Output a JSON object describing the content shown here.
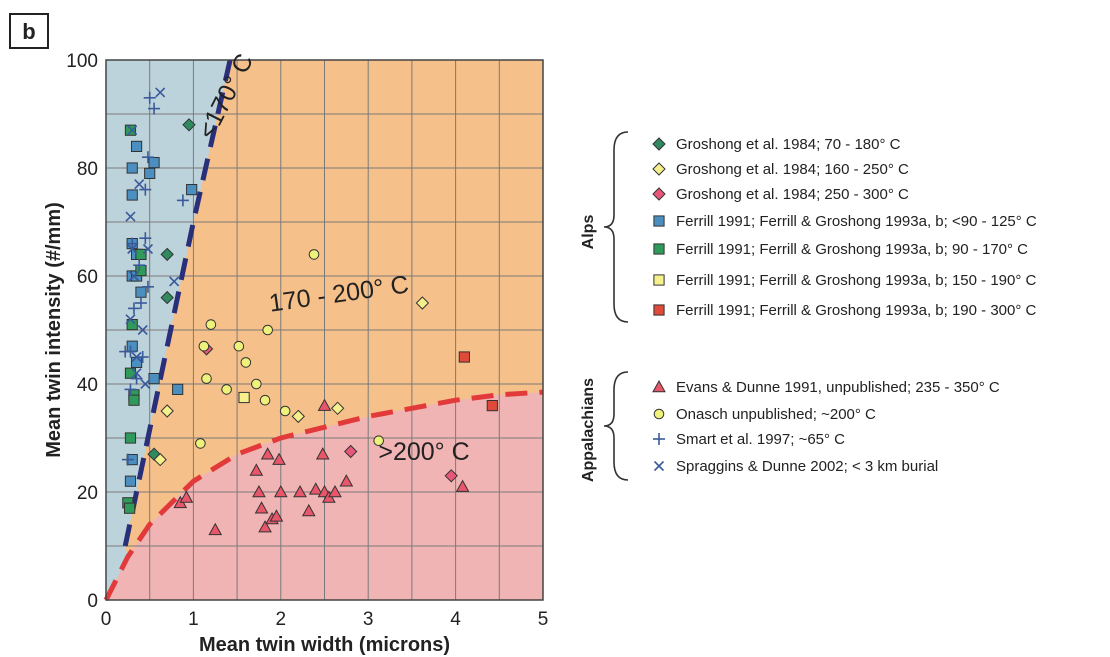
{
  "panel_label": "b",
  "chart_data": {
    "type": "scatter",
    "xlabel": "Mean twin width (microns)",
    "ylabel": "Mean twin intensity (#/mm)",
    "xlim": [
      0,
      5
    ],
    "ylim": [
      0,
      100
    ],
    "x_ticks": [
      "0",
      "1",
      "2",
      "3",
      "4",
      "5"
    ],
    "y_ticks": [
      "0",
      "20",
      "40",
      "60",
      "80",
      "100"
    ],
    "grid": true,
    "region_labels": [
      "<170° C",
      "170 - 200° C",
      ">200° C"
    ],
    "regions": [
      {
        "label": "<170° C",
        "color": "#bdd3dc"
      },
      {
        "label": "170 - 200° C",
        "color": "#f6c08a"
      },
      {
        "label": ">200° C",
        "color": "#f0b4b4"
      }
    ],
    "boundaries": [
      {
        "style": "dashed",
        "color": "#2a2f7a",
        "points": [
          [
            0.22,
            10
          ],
          [
            1.0,
            70
          ],
          [
            1.42,
            100
          ]
        ]
      },
      {
        "style": "dashed",
        "color": "#e23a3a",
        "points": [
          [
            0,
            0
          ],
          [
            0.25,
            8
          ],
          [
            0.5,
            14
          ],
          [
            1,
            22
          ],
          [
            1.5,
            27
          ],
          [
            2,
            30
          ],
          [
            2.5,
            32
          ],
          [
            3,
            34
          ],
          [
            3.5,
            35.5
          ],
          [
            4,
            37
          ],
          [
            4.5,
            38
          ],
          [
            5,
            38.5
          ]
        ]
      }
    ],
    "group_labels": [
      "Alps",
      "Appalachians"
    ],
    "series": [
      {
        "name": "Groshong et al. 1984; 70 - 180° C",
        "group": "Alps",
        "marker": "diamond",
        "color": "#2f8a5f",
        "points": [
          [
            0.95,
            88
          ],
          [
            0.7,
            64
          ],
          [
            0.7,
            56
          ],
          [
            0.55,
            27
          ]
        ]
      },
      {
        "name": "Groshong et al. 1984; 160 - 250° C",
        "group": "Alps",
        "marker": "diamond",
        "color": "#f5ef8c",
        "points": [
          [
            0.62,
            26
          ],
          [
            0.7,
            35
          ],
          [
            2.2,
            34
          ],
          [
            2.65,
            35.5
          ],
          [
            3.62,
            55
          ]
        ]
      },
      {
        "name": "Groshong et al. 1984; 250 - 300° C",
        "group": "Alps",
        "marker": "diamond",
        "color": "#e8567a",
        "points": [
          [
            1.15,
            46.5
          ],
          [
            2.8,
            27.5
          ],
          [
            3.95,
            23
          ]
        ]
      },
      {
        "name": "Ferrill 1991; Ferrill & Groshong 1993a, b; <90 - 125° C",
        "group": "Alps",
        "marker": "square",
        "color": "#4a8fbf",
        "points": [
          [
            0.3,
            80
          ],
          [
            0.35,
            84
          ],
          [
            0.5,
            79
          ],
          [
            0.55,
            81
          ],
          [
            0.3,
            75
          ],
          [
            0.98,
            76
          ],
          [
            0.3,
            66
          ],
          [
            0.35,
            64
          ],
          [
            0.3,
            60
          ],
          [
            0.35,
            60
          ],
          [
            0.4,
            57
          ],
          [
            0.3,
            47
          ],
          [
            0.35,
            44
          ],
          [
            0.55,
            41
          ],
          [
            0.82,
            39
          ],
          [
            0.3,
            26
          ],
          [
            0.28,
            22
          ]
        ]
      },
      {
        "name": "Ferrill 1991; Ferrill & Groshong 1993a, b; 90 - 170° C",
        "group": "Alps",
        "marker": "square",
        "color": "#2f9a5a",
        "points": [
          [
            0.28,
            87
          ],
          [
            0.4,
            64
          ],
          [
            0.4,
            61
          ],
          [
            0.3,
            51
          ],
          [
            0.28,
            42
          ],
          [
            0.32,
            38
          ],
          [
            0.32,
            37
          ],
          [
            0.28,
            30
          ],
          [
            0.25,
            18
          ],
          [
            0.27,
            17
          ]
        ]
      },
      {
        "name": "Ferrill 1991; Ferrill & Groshong 1993a, b; 150 - 190° C",
        "group": "Alps",
        "marker": "square",
        "color": "#f5ef8c",
        "points": [
          [
            1.58,
            37.5
          ]
        ]
      },
      {
        "name": "Ferrill 1991; Ferrill & Groshong 1993a, b; 190 - 300° C",
        "group": "Alps",
        "marker": "square",
        "color": "#e04a3a",
        "points": [
          [
            4.1,
            45
          ],
          [
            4.42,
            36
          ]
        ]
      },
      {
        "name": "Evans & Dunne 1991, unpublished; 235 - 350° C",
        "group": "Appalachians",
        "marker": "triangle",
        "color": "#e8566a",
        "points": [
          [
            0.85,
            18
          ],
          [
            0.92,
            19
          ],
          [
            1.25,
            13
          ],
          [
            1.72,
            24
          ],
          [
            1.75,
            20
          ],
          [
            1.78,
            17
          ],
          [
            1.82,
            13.5
          ],
          [
            1.85,
            27
          ],
          [
            1.9,
            15
          ],
          [
            1.95,
            15.5
          ],
          [
            1.98,
            26
          ],
          [
            2.0,
            20
          ],
          [
            2.22,
            20
          ],
          [
            2.32,
            16.5
          ],
          [
            2.4,
            20.5
          ],
          [
            2.48,
            27
          ],
          [
            2.5,
            36
          ],
          [
            2.5,
            20
          ],
          [
            2.55,
            19
          ],
          [
            2.62,
            20
          ],
          [
            2.75,
            22
          ],
          [
            4.08,
            21
          ]
        ]
      },
      {
        "name": "Onasch unpublished; ~200° C",
        "group": "Appalachians",
        "marker": "circle",
        "color": "#eef27a",
        "points": [
          [
            1.08,
            29
          ],
          [
            1.12,
            47
          ],
          [
            1.15,
            41
          ],
          [
            1.2,
            51
          ],
          [
            1.38,
            39
          ],
          [
            1.52,
            47
          ],
          [
            1.6,
            44
          ],
          [
            1.72,
            40
          ],
          [
            1.82,
            37
          ],
          [
            1.85,
            50
          ],
          [
            2.05,
            35
          ],
          [
            2.38,
            64
          ],
          [
            3.12,
            29.5
          ]
        ]
      },
      {
        "name": "Smart et al. 1997; ~65° C",
        "group": "Appalachians",
        "marker": "plus",
        "color": "#3a5a9a",
        "points": [
          [
            0.5,
            93
          ],
          [
            0.55,
            91
          ],
          [
            0.48,
            82
          ],
          [
            0.45,
            76
          ],
          [
            0.88,
            74
          ],
          [
            0.3,
            66
          ],
          [
            0.45,
            67
          ],
          [
            0.38,
            62
          ],
          [
            0.48,
            58
          ],
          [
            0.4,
            55
          ],
          [
            0.32,
            54
          ],
          [
            0.28,
            46
          ],
          [
            0.22,
            46
          ],
          [
            0.42,
            45
          ],
          [
            0.35,
            41
          ],
          [
            0.28,
            39
          ],
          [
            0.25,
            26
          ]
        ]
      },
      {
        "name": "Spraggins & Dunne 2002; < 3 km burial",
        "group": "Appalachians",
        "marker": "cross",
        "color": "#3a5a9a",
        "points": [
          [
            0.62,
            94
          ],
          [
            0.3,
            87
          ],
          [
            0.38,
            77
          ],
          [
            0.28,
            71
          ],
          [
            0.3,
            65
          ],
          [
            0.48,
            65
          ],
          [
            0.78,
            59
          ],
          [
            0.32,
            60
          ],
          [
            0.28,
            52
          ],
          [
            0.42,
            50
          ],
          [
            0.35,
            45
          ],
          [
            0.35,
            42
          ],
          [
            0.45,
            40
          ]
        ]
      }
    ]
  }
}
